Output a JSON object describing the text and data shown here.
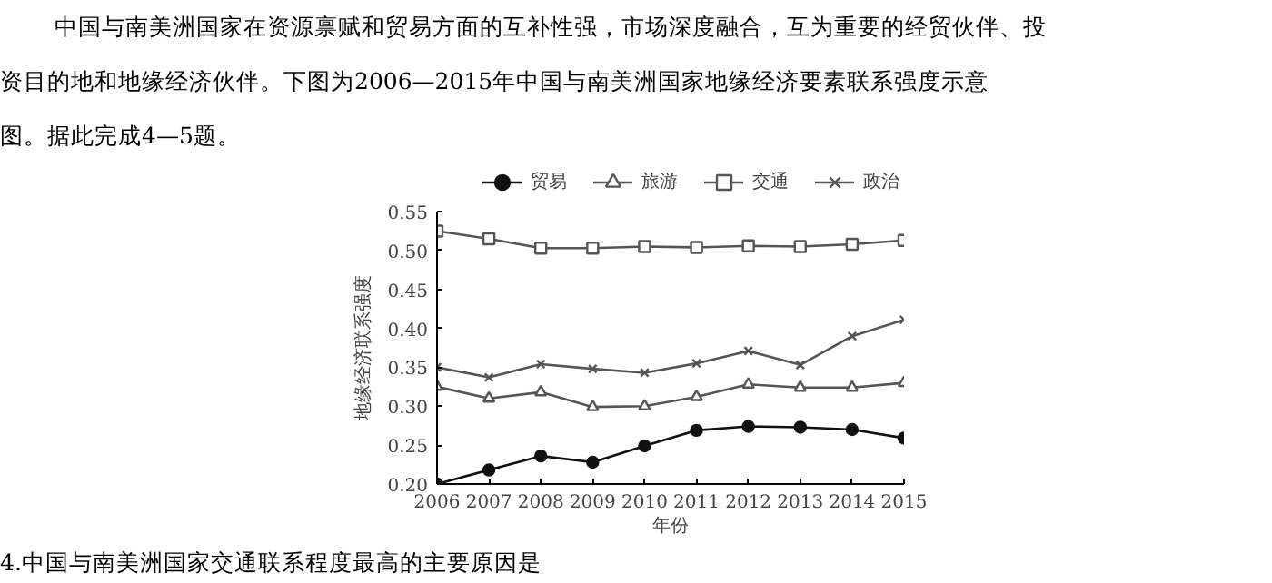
{
  "chart_data": {
    "type": "line",
    "xlabel": "年份",
    "ylabel": "地缘经济联系强度",
    "annotations": [
      "中国与南美洲国家在资源禀赋和贸易方面的互补性强，市场深度融合，互为重要的经贸伙伴、投",
      "资目的地和地缘经济伙伴。下图为2006—2015年中国与南美洲国家地缘经济要素联系强度示意",
      "图。据此完成4—5题。",
      "4.中国与南美洲国家交通联系程度最高的主要原因是"
    ],
    "x": [
      2006,
      2007,
      2008,
      2009,
      2010,
      2011,
      2012,
      2013,
      2014,
      2015
    ],
    "xlim": [
      2006,
      2015
    ],
    "xticks": [
      2006,
      2007,
      2008,
      2009,
      2010,
      2011,
      2012,
      2013,
      2014,
      2015
    ],
    "ylim": [
      0.2,
      0.55
    ],
    "yticks": [
      {
        "value": 0.2,
        "label": "0.20"
      },
      0.25,
      {
        "value": 0.3,
        "label": "0.30"
      },
      0.35,
      {
        "value": 0.4,
        "label": "0.40"
      },
      0.45,
      {
        "value": 0.5,
        "label": "0.50"
      },
      0.55
    ],
    "legend": "top",
    "grid": false,
    "series": [
      {
        "name": "贸易",
        "color": "#111111",
        "marker": "circle",
        "values": [
          0.2,
          0.218,
          0.236,
          0.228,
          0.249,
          0.269,
          0.274,
          0.273,
          0.27,
          0.259
        ]
      },
      {
        "name": "旅游",
        "color": "#555555",
        "marker": "triangle",
        "values": [
          0.325,
          0.31,
          0.318,
          0.299,
          0.3,
          0.312,
          0.328,
          0.324,
          0.324,
          0.33
        ]
      },
      {
        "name": "交通",
        "color": "#555555",
        "marker": "square",
        "values": [
          0.525,
          0.515,
          0.503,
          0.503,
          0.505,
          0.504,
          0.506,
          0.505,
          0.508,
          0.513
        ]
      },
      {
        "name": "政治",
        "color": "#555555",
        "marker": "cross",
        "values": [
          0.35,
          0.337,
          0.354,
          0.348,
          0.343,
          0.355,
          0.371,
          0.353,
          0.39,
          0.411
        ]
      }
    ]
  }
}
